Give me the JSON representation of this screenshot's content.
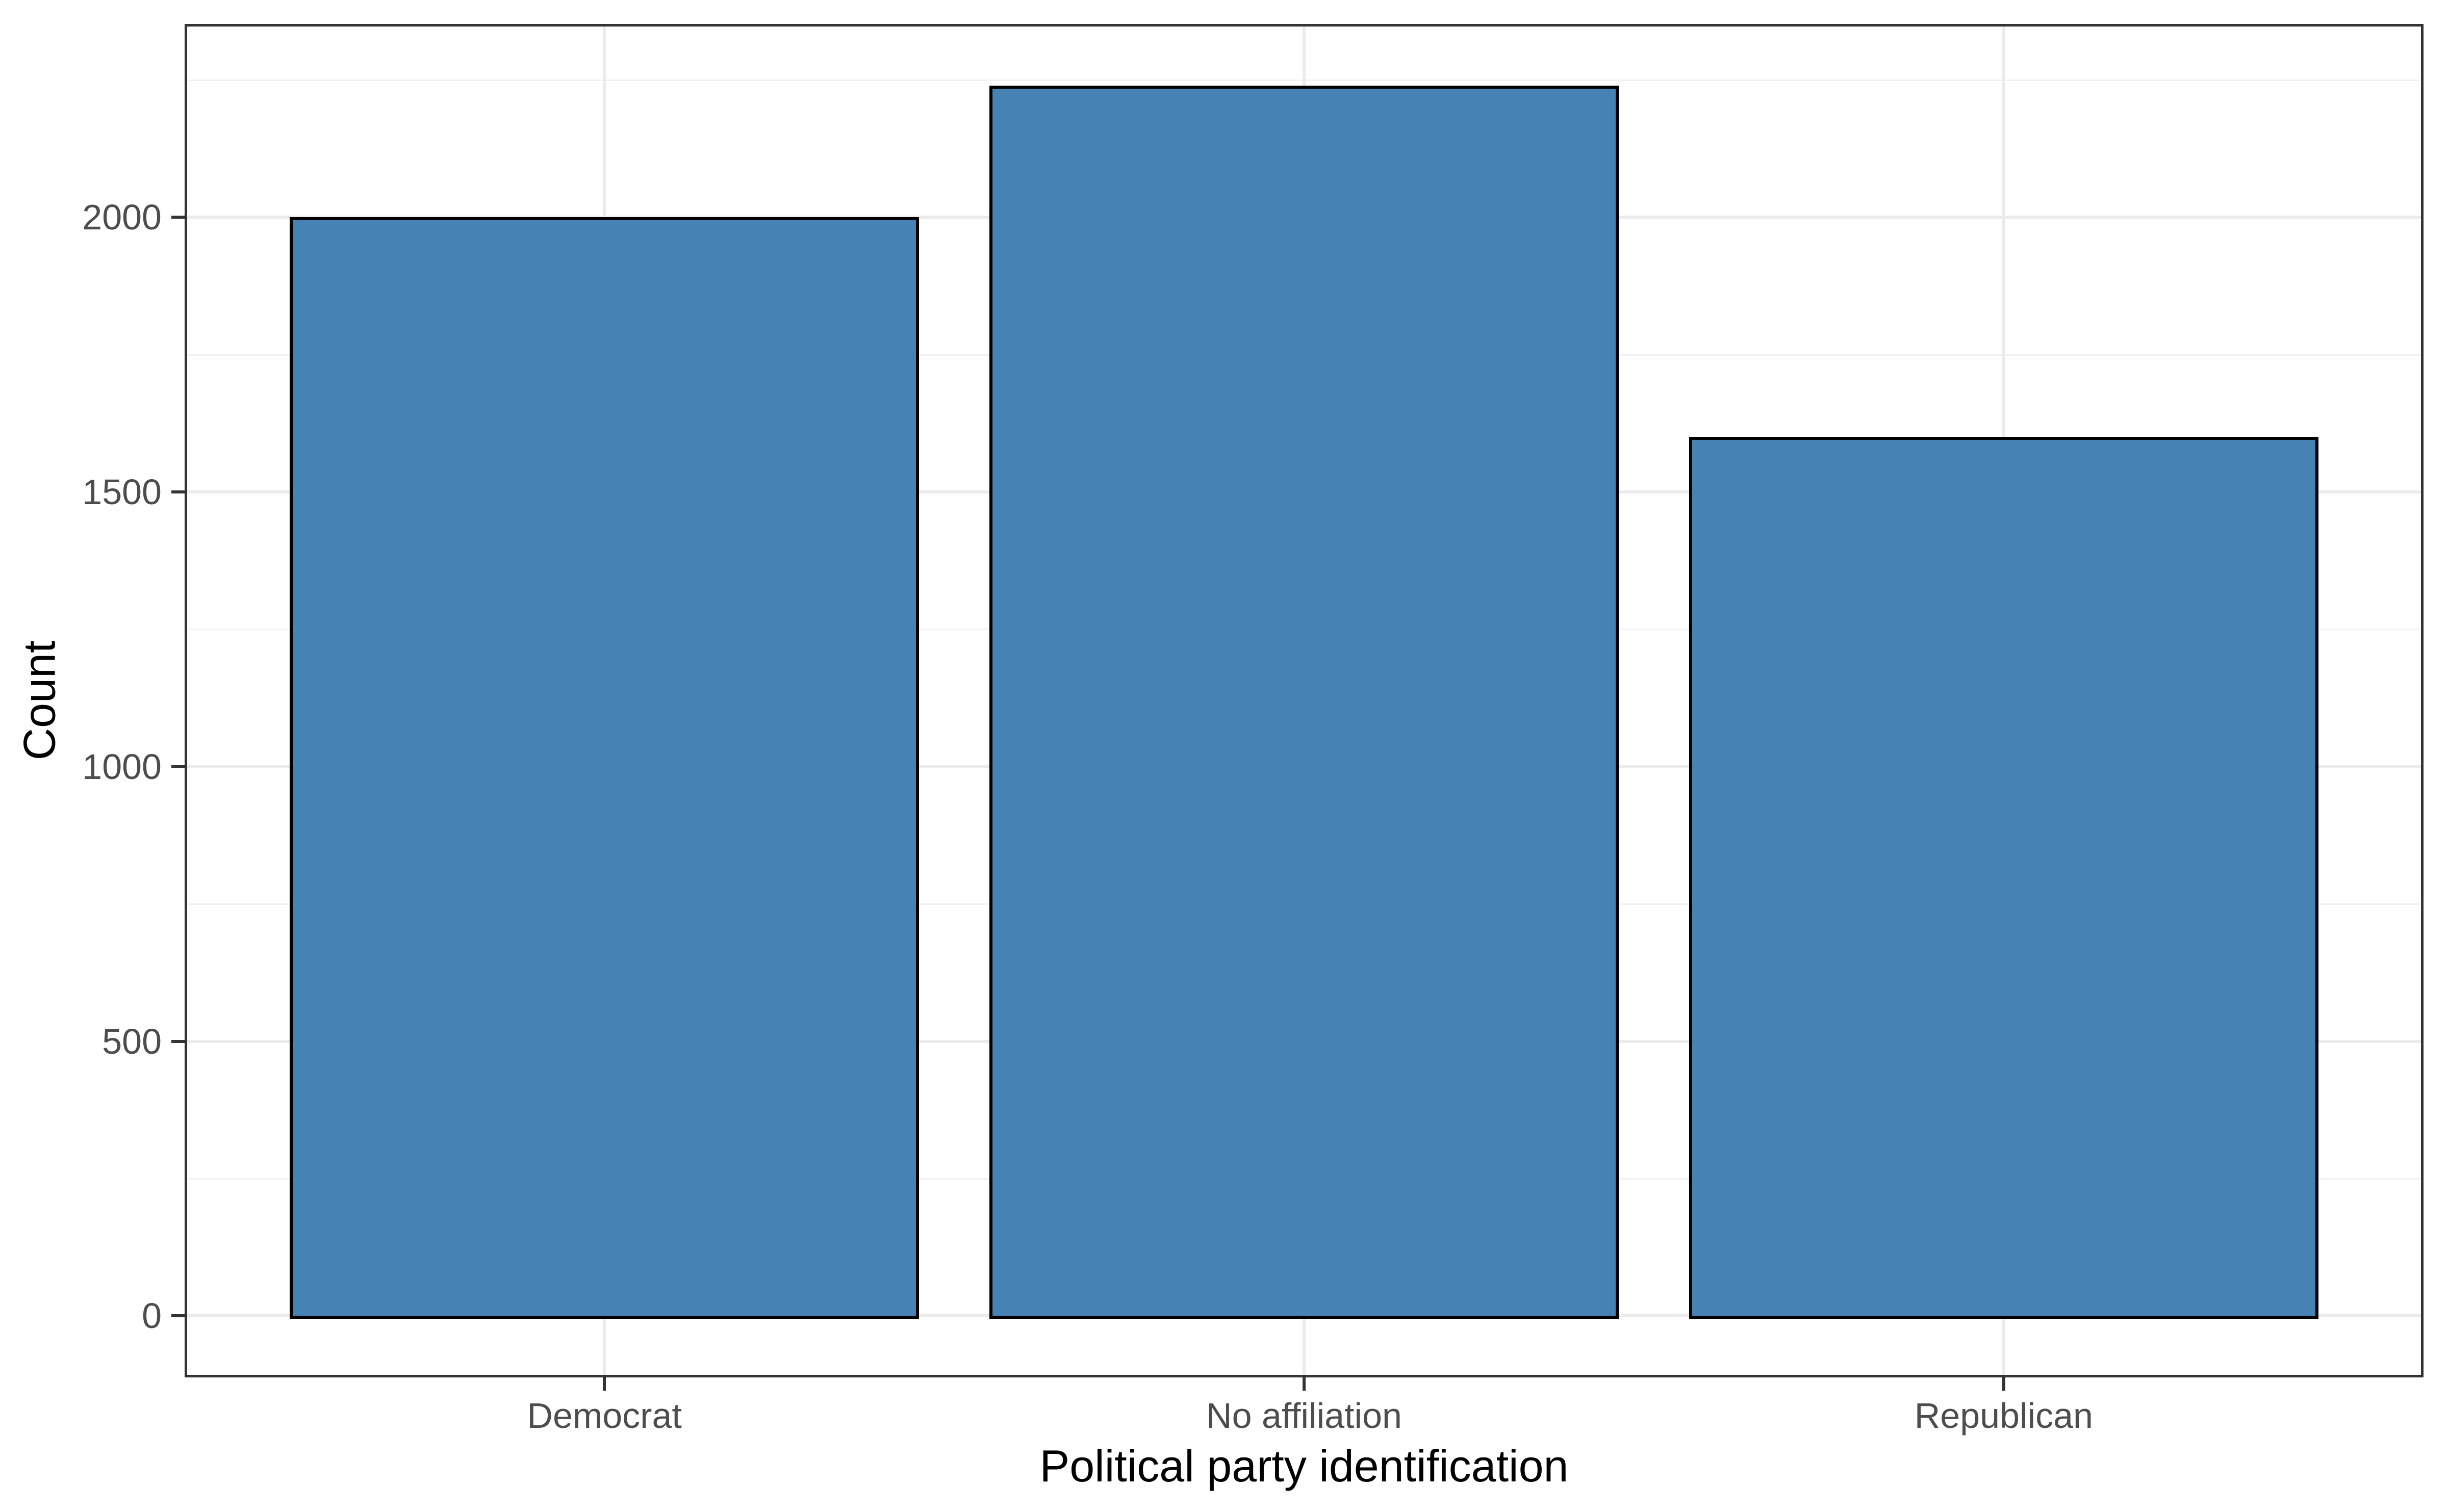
{
  "chart_data": {
    "type": "bar",
    "title": "",
    "categories": [
      "Democrat",
      "No affiliation",
      "Republican"
    ],
    "values": [
      2000,
      2240,
      1600
    ],
    "xlabel": "Political party identification",
    "ylabel": "Count",
    "y_ticks": [
      0,
      500,
      1000,
      1500,
      2000
    ],
    "y_minor_gridlines": [
      250,
      750,
      1250,
      1750,
      2250
    ],
    "ylim": [
      0,
      2240
    ],
    "axis_expansion_mult": 0.05,
    "bar_width_fraction_of_category": 0.9,
    "grid": "horizontal major+minor gridlines; vertical major gridline at each category center",
    "legend": "none",
    "colors": {
      "bar_fill": "#4682B4",
      "bar_stroke": "#000000",
      "panel_border": "#333333",
      "major_gridline": "#EBEBEB",
      "minor_gridline": "#F2F2F2",
      "tick_mark": "#333333",
      "tick_label": "#4D4D4D",
      "axis_title": "#000000",
      "background": "#FFFFFF"
    }
  }
}
